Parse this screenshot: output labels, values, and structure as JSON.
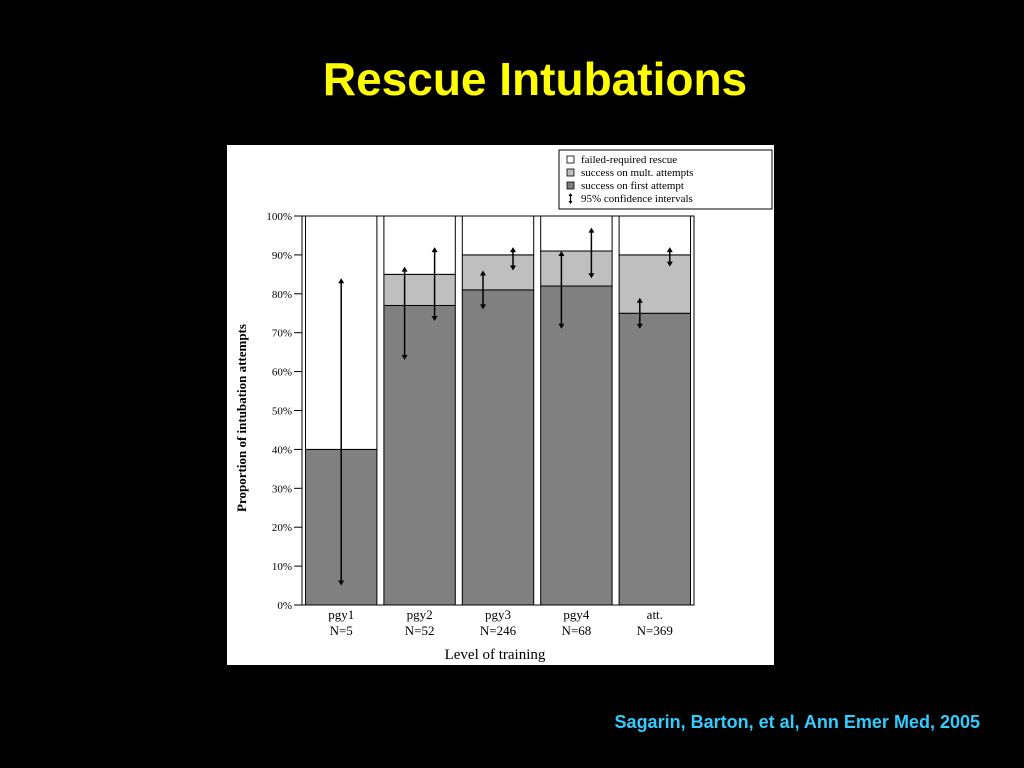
{
  "slide": {
    "title": "Rescue Intubations",
    "citation": "Sagarin, Barton, et al, Ann Emer Med, 2005",
    "title_color": "#ffff00",
    "citation_color": "#33ccff",
    "background_color": "#000000"
  },
  "chart_data": {
    "type": "bar",
    "stacked": true,
    "title": "",
    "xlabel": "Level of training",
    "ylabel": "Proportion of intubation attempts",
    "ylim": [
      0,
      100
    ],
    "y_ticks": [
      "0%",
      "10%",
      "20%",
      "30%",
      "40%",
      "50%",
      "60%",
      "70%",
      "80%",
      "90%",
      "100%"
    ],
    "grid": false,
    "legend_position": "top-right",
    "categories": [
      {
        "label": "pgy1",
        "n": "N=5"
      },
      {
        "label": "pgy2",
        "n": "N=52"
      },
      {
        "label": "pgy3",
        "n": "N=246"
      },
      {
        "label": "pgy4",
        "n": "N=68"
      },
      {
        "label": "att.",
        "n": "N=369"
      }
    ],
    "series": [
      {
        "name": "success on first attempt",
        "color": "#808080",
        "values": [
          40,
          77,
          81,
          82,
          75
        ]
      },
      {
        "name": "success on mult. attempts",
        "color": "#bfbfbf",
        "values": [
          0,
          8,
          9,
          9,
          15
        ]
      },
      {
        "name": "failed-required rescue",
        "color": "#ffffff",
        "values": [
          60,
          15,
          10,
          9,
          10
        ]
      }
    ],
    "confidence_intervals_label": "95% confidence intervals",
    "confidence_intervals": [
      {
        "category": "pgy1",
        "low": 5,
        "high": 84
      },
      {
        "category": "pgy2",
        "low": 63,
        "high": 87
      },
      {
        "category": "pgy2",
        "low": 73,
        "high": 92
      },
      {
        "category": "pgy3",
        "low": 76,
        "high": 86
      },
      {
        "category": "pgy3",
        "low": 86,
        "high": 92
      },
      {
        "category": "pgy4",
        "low": 71,
        "high": 91
      },
      {
        "category": "pgy4",
        "low": 84,
        "high": 97
      },
      {
        "category": "att.",
        "low": 71,
        "high": 79
      },
      {
        "category": "att.",
        "low": 87,
        "high": 92
      }
    ]
  }
}
